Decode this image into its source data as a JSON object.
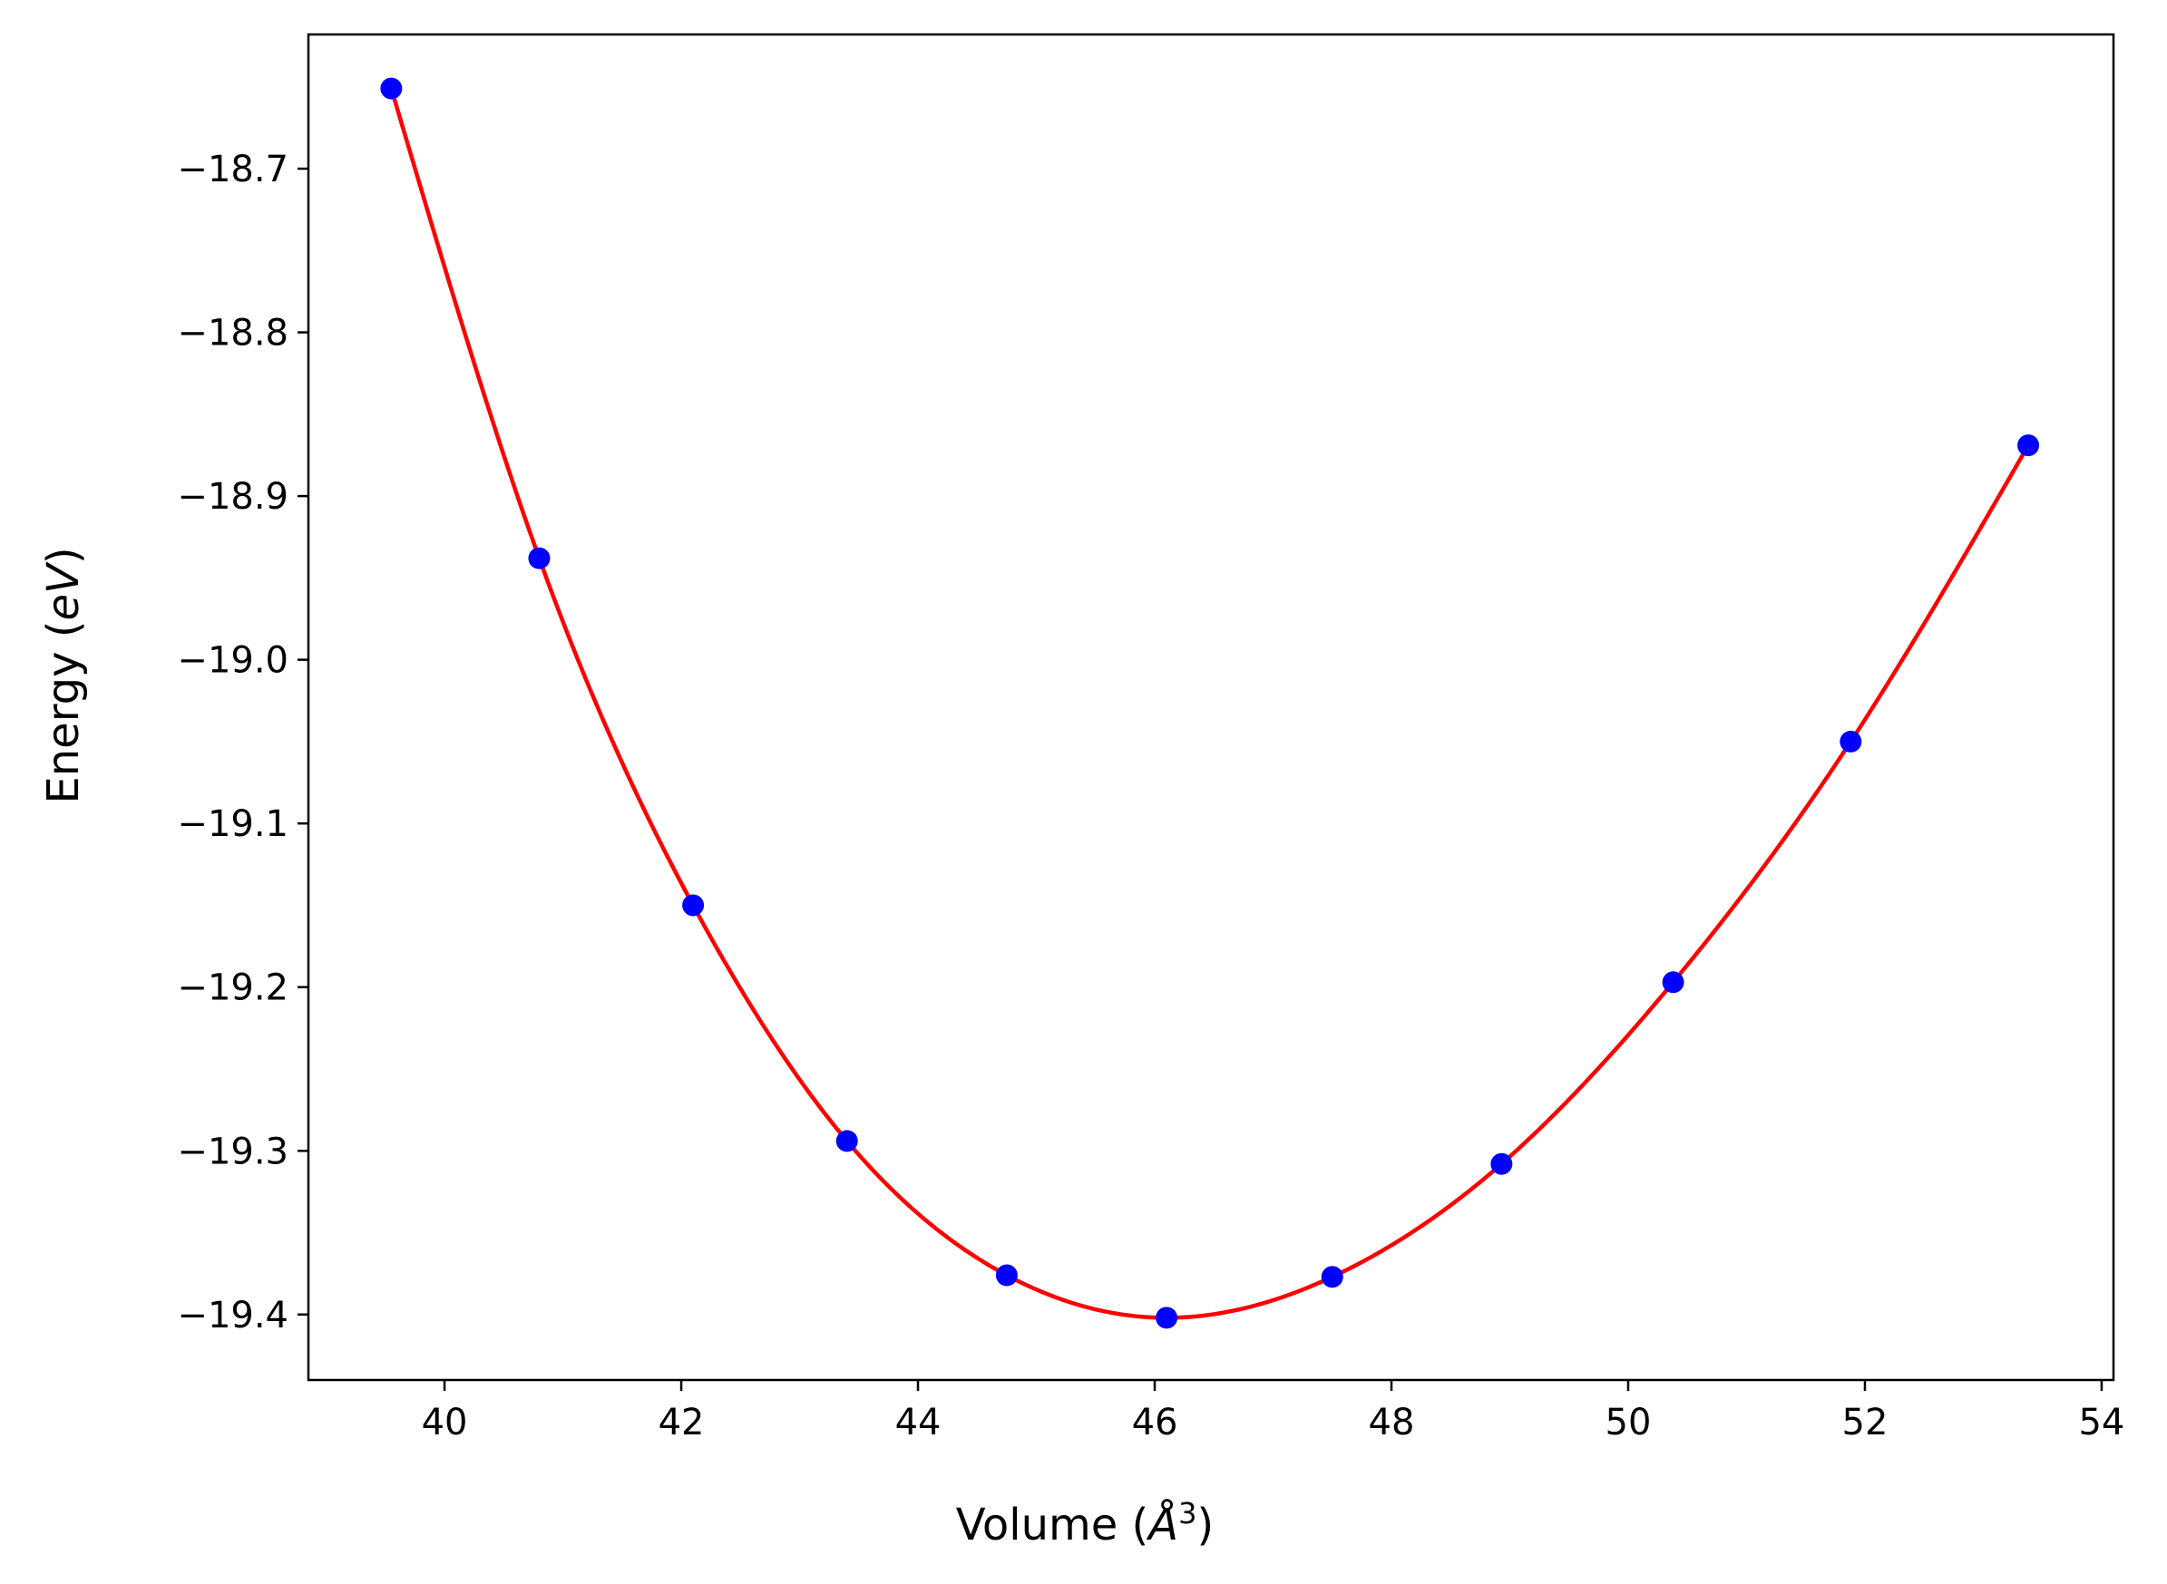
{
  "chart_data": {
    "type": "scatter",
    "title": "",
    "xlabel": "Volume",
    "xlabel_unit": "Å",
    "xlabel_exponent": "3",
    "ylabel": "Energy",
    "ylabel_unit": "eV",
    "xlim": [
      38.85,
      54.1
    ],
    "ylim": [
      -19.44,
      -18.618
    ],
    "xticks": [
      40,
      42,
      44,
      46,
      48,
      50,
      52,
      54
    ],
    "xtick_labels": [
      "40",
      "42",
      "44",
      "46",
      "48",
      "50",
      "52",
      "54"
    ],
    "yticks": [
      -18.7,
      -18.8,
      -18.9,
      -19.0,
      -19.1,
      -19.2,
      -19.3,
      -19.4
    ],
    "ytick_labels": [
      "−18.7",
      "−18.8",
      "−18.9",
      "−19.0",
      "−19.1",
      "−19.2",
      "−19.3",
      "−19.4"
    ],
    "grid": false,
    "series": [
      {
        "kind": "points",
        "color": "#0000ff",
        "x": [
          39.55,
          40.8,
          42.1,
          43.4,
          44.75,
          46.1,
          47.5,
          48.93,
          50.38,
          51.88,
          53.38
        ],
        "y": [
          -18.651,
          -18.938,
          -19.15,
          -19.294,
          -19.376,
          -19.402,
          -19.377,
          -19.308,
          -19.197,
          -19.05,
          -18.869
        ]
      },
      {
        "kind": "fit-curve",
        "color": "#ff0000",
        "x": [
          39.55,
          40.8,
          42.1,
          43.4,
          44.75,
          46.1,
          47.5,
          48.93,
          50.38,
          51.88,
          53.38
        ],
        "y": [
          -18.651,
          -18.938,
          -19.15,
          -19.294,
          -19.376,
          -19.402,
          -19.377,
          -19.308,
          -19.197,
          -19.05,
          -18.869
        ]
      }
    ]
  }
}
